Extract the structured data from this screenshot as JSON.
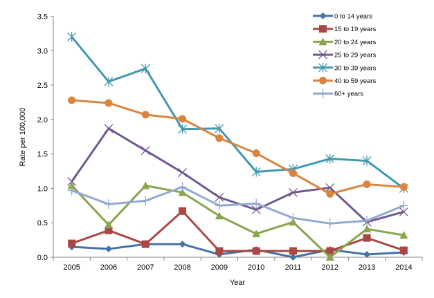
{
  "chart_data": {
    "type": "line",
    "title": "",
    "xlabel": "Year",
    "ylabel": "Rate per 100,000",
    "ylim": [
      0,
      3.5
    ],
    "yticks": [
      "0.0",
      "0.5",
      "1.0",
      "1.5",
      "2.0",
      "2.5",
      "3.0",
      "3.5"
    ],
    "categories": [
      "2005",
      "2006",
      "2007",
      "2008",
      "2009",
      "2010",
      "2011",
      "2012",
      "2013",
      "2014"
    ],
    "grid": false,
    "legend": "top-right",
    "series": [
      {
        "name": "0 to 14 years",
        "color": "#4572A7",
        "marker": "diamond",
        "values": [
          0.15,
          0.12,
          0.19,
          0.19,
          0.04,
          0.11,
          0.0,
          0.11,
          0.04,
          0.07
        ]
      },
      {
        "name": "15 to 19 years",
        "color": "#AA4643",
        "marker": "square",
        "values": [
          0.2,
          0.39,
          0.19,
          0.67,
          0.09,
          0.09,
          0.09,
          0.09,
          0.28,
          0.1
        ]
      },
      {
        "name": "20 to 24 years",
        "color": "#89A54E",
        "marker": "triangle",
        "values": [
          1.04,
          0.47,
          1.04,
          0.94,
          0.6,
          0.34,
          0.51,
          0.0,
          0.41,
          0.32
        ]
      },
      {
        "name": "25 to 29 years",
        "color": "#71588F",
        "marker": "x",
        "values": [
          1.1,
          1.87,
          1.55,
          1.23,
          0.87,
          0.69,
          0.94,
          1.01,
          0.51,
          0.66
        ]
      },
      {
        "name": "30 to 39 years",
        "color": "#4198AF",
        "marker": "star",
        "values": [
          3.2,
          2.55,
          2.74,
          1.86,
          1.87,
          1.24,
          1.28,
          1.43,
          1.4,
          1.0
        ]
      },
      {
        "name": "40 to 59 years",
        "color": "#DB843D",
        "marker": "circle",
        "values": [
          2.28,
          2.24,
          2.07,
          2.01,
          1.73,
          1.51,
          1.22,
          0.92,
          1.06,
          1.02
        ]
      },
      {
        "name": "60+ years",
        "color": "#93A9CF",
        "marker": "plus",
        "values": [
          0.97,
          0.77,
          0.82,
          1.02,
          0.75,
          0.78,
          0.57,
          0.49,
          0.53,
          0.75
        ]
      }
    ]
  }
}
